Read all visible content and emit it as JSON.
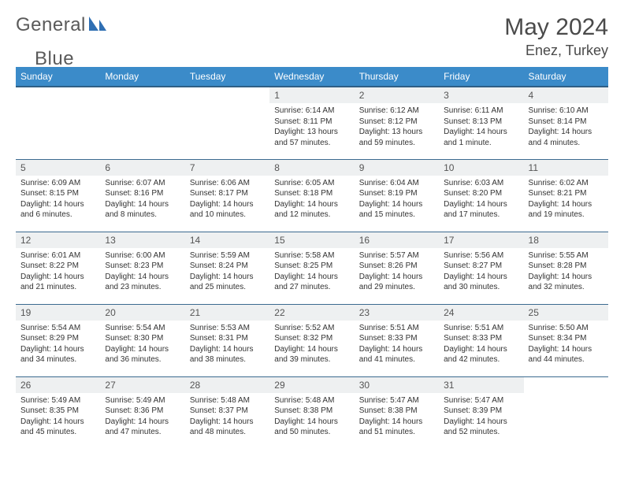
{
  "brand": {
    "name1": "General",
    "name2": "Blue"
  },
  "title": {
    "month_year": "May 2024",
    "location": "Enez, Turkey"
  },
  "colors": {
    "header_bg": "#3b8bc9",
    "header_text": "#ffffff",
    "row_border": "#3b6a8f",
    "daynum_bg": "#eef0f1",
    "text": "#333333",
    "logo_gray": "#5a5a5a",
    "logo_blue": "#2f6fb3"
  },
  "typography": {
    "title_fontsize": 30,
    "location_fontsize": 18,
    "dayheader_fontsize": 12,
    "daynum_fontsize": 12,
    "body_fontsize": 10
  },
  "layout": {
    "columns": 7,
    "rows": 5,
    "first_day_column_index": 3
  },
  "day_headers": [
    "Sunday",
    "Monday",
    "Tuesday",
    "Wednesday",
    "Thursday",
    "Friday",
    "Saturday"
  ],
  "days": [
    {
      "n": "1",
      "sunrise": "6:14 AM",
      "sunset": "8:11 PM",
      "daylight": "13 hours and 57 minutes."
    },
    {
      "n": "2",
      "sunrise": "6:12 AM",
      "sunset": "8:12 PM",
      "daylight": "13 hours and 59 minutes."
    },
    {
      "n": "3",
      "sunrise": "6:11 AM",
      "sunset": "8:13 PM",
      "daylight": "14 hours and 1 minute."
    },
    {
      "n": "4",
      "sunrise": "6:10 AM",
      "sunset": "8:14 PM",
      "daylight": "14 hours and 4 minutes."
    },
    {
      "n": "5",
      "sunrise": "6:09 AM",
      "sunset": "8:15 PM",
      "daylight": "14 hours and 6 minutes."
    },
    {
      "n": "6",
      "sunrise": "6:07 AM",
      "sunset": "8:16 PM",
      "daylight": "14 hours and 8 minutes."
    },
    {
      "n": "7",
      "sunrise": "6:06 AM",
      "sunset": "8:17 PM",
      "daylight": "14 hours and 10 minutes."
    },
    {
      "n": "8",
      "sunrise": "6:05 AM",
      "sunset": "8:18 PM",
      "daylight": "14 hours and 12 minutes."
    },
    {
      "n": "9",
      "sunrise": "6:04 AM",
      "sunset": "8:19 PM",
      "daylight": "14 hours and 15 minutes."
    },
    {
      "n": "10",
      "sunrise": "6:03 AM",
      "sunset": "8:20 PM",
      "daylight": "14 hours and 17 minutes."
    },
    {
      "n": "11",
      "sunrise": "6:02 AM",
      "sunset": "8:21 PM",
      "daylight": "14 hours and 19 minutes."
    },
    {
      "n": "12",
      "sunrise": "6:01 AM",
      "sunset": "8:22 PM",
      "daylight": "14 hours and 21 minutes."
    },
    {
      "n": "13",
      "sunrise": "6:00 AM",
      "sunset": "8:23 PM",
      "daylight": "14 hours and 23 minutes."
    },
    {
      "n": "14",
      "sunrise": "5:59 AM",
      "sunset": "8:24 PM",
      "daylight": "14 hours and 25 minutes."
    },
    {
      "n": "15",
      "sunrise": "5:58 AM",
      "sunset": "8:25 PM",
      "daylight": "14 hours and 27 minutes."
    },
    {
      "n": "16",
      "sunrise": "5:57 AM",
      "sunset": "8:26 PM",
      "daylight": "14 hours and 29 minutes."
    },
    {
      "n": "17",
      "sunrise": "5:56 AM",
      "sunset": "8:27 PM",
      "daylight": "14 hours and 30 minutes."
    },
    {
      "n": "18",
      "sunrise": "5:55 AM",
      "sunset": "8:28 PM",
      "daylight": "14 hours and 32 minutes."
    },
    {
      "n": "19",
      "sunrise": "5:54 AM",
      "sunset": "8:29 PM",
      "daylight": "14 hours and 34 minutes."
    },
    {
      "n": "20",
      "sunrise": "5:54 AM",
      "sunset": "8:30 PM",
      "daylight": "14 hours and 36 minutes."
    },
    {
      "n": "21",
      "sunrise": "5:53 AM",
      "sunset": "8:31 PM",
      "daylight": "14 hours and 38 minutes."
    },
    {
      "n": "22",
      "sunrise": "5:52 AM",
      "sunset": "8:32 PM",
      "daylight": "14 hours and 39 minutes."
    },
    {
      "n": "23",
      "sunrise": "5:51 AM",
      "sunset": "8:33 PM",
      "daylight": "14 hours and 41 minutes."
    },
    {
      "n": "24",
      "sunrise": "5:51 AM",
      "sunset": "8:33 PM",
      "daylight": "14 hours and 42 minutes."
    },
    {
      "n": "25",
      "sunrise": "5:50 AM",
      "sunset": "8:34 PM",
      "daylight": "14 hours and 44 minutes."
    },
    {
      "n": "26",
      "sunrise": "5:49 AM",
      "sunset": "8:35 PM",
      "daylight": "14 hours and 45 minutes."
    },
    {
      "n": "27",
      "sunrise": "5:49 AM",
      "sunset": "8:36 PM",
      "daylight": "14 hours and 47 minutes."
    },
    {
      "n": "28",
      "sunrise": "5:48 AM",
      "sunset": "8:37 PM",
      "daylight": "14 hours and 48 minutes."
    },
    {
      "n": "29",
      "sunrise": "5:48 AM",
      "sunset": "8:38 PM",
      "daylight": "14 hours and 50 minutes."
    },
    {
      "n": "30",
      "sunrise": "5:47 AM",
      "sunset": "8:38 PM",
      "daylight": "14 hours and 51 minutes."
    },
    {
      "n": "31",
      "sunrise": "5:47 AM",
      "sunset": "8:39 PM",
      "daylight": "14 hours and 52 minutes."
    }
  ],
  "labels": {
    "sunrise": "Sunrise:",
    "sunset": "Sunset:",
    "daylight": "Daylight:"
  }
}
